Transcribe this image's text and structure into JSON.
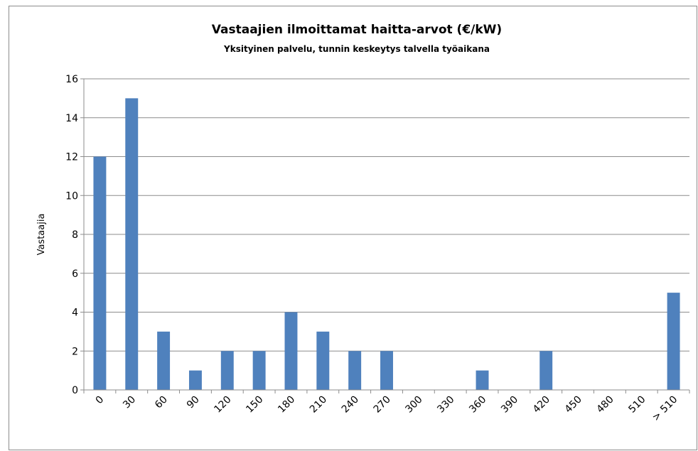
{
  "chart_data": {
    "type": "bar",
    "title": "Vastaajien ilmoittamat haitta-arvot (€/kW)",
    "subtitle": "Yksityinen palvelu, tunnin keskeytys talvella työaikana",
    "y_label": "Vastaajia",
    "categories": [
      "0",
      "30",
      "60",
      "90",
      "120",
      "150",
      "180",
      "210",
      "240",
      "270",
      "300",
      "330",
      "360",
      "390",
      "420",
      "450",
      "480",
      "510",
      "> 510"
    ],
    "values": [
      12,
      15,
      3,
      1,
      2,
      2,
      4,
      3,
      2,
      2,
      0,
      0,
      1,
      0,
      2,
      0,
      0,
      0,
      5
    ],
    "color": "#4f81bd",
    "ylim": [
      0,
      16
    ],
    "yticks": [
      0,
      2,
      4,
      6,
      8,
      10,
      12,
      14,
      16
    ],
    "grid": true
  }
}
